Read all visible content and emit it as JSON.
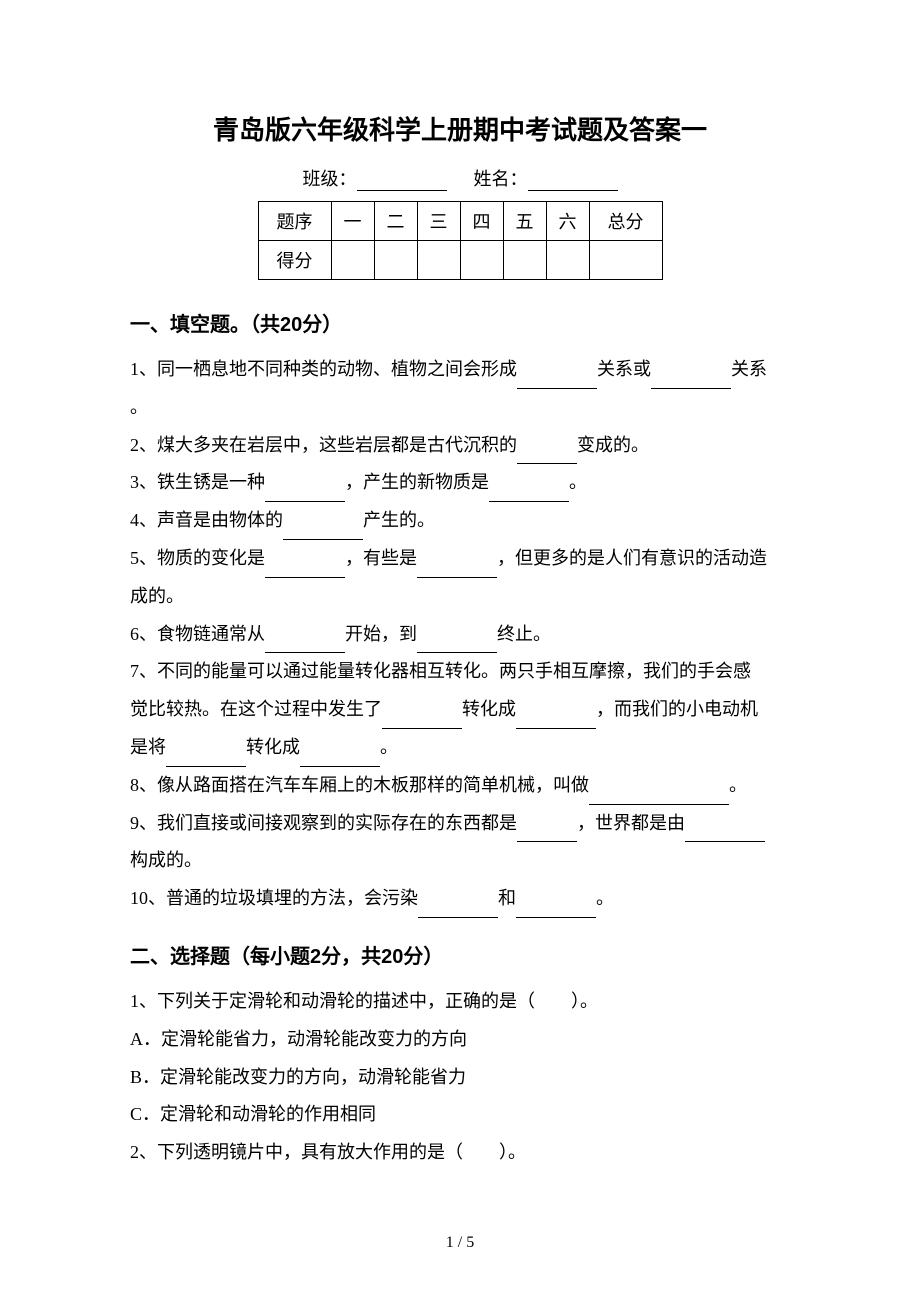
{
  "title": "青岛版六年级科学上册期中考试题及答案一",
  "info": {
    "class_label": "班级：",
    "name_label": "姓名："
  },
  "score_table": {
    "headers": [
      "题序",
      "一",
      "二",
      "三",
      "四",
      "五",
      "六",
      "总分"
    ],
    "row_label": "得分"
  },
  "section1": {
    "heading": "一、填空题。（共20分）",
    "q1_a": "1、同一栖息地不同种类的动物、植物之间会形成",
    "q1_b": "关系或",
    "q1_c": "关系",
    "q1_d": "。",
    "q2_a": "2、煤大多夹在岩层中，这些岩层都是古代沉积的",
    "q2_b": "变成的。",
    "q3_a": "3、铁生锈是一种",
    "q3_b": "，产生的新物质是",
    "q3_c": "。",
    "q4_a": "4、声音是由物体的",
    "q4_b": "产生的。",
    "q5_a": "5、物质的变化是",
    "q5_b": "，有些是",
    "q5_c": "，但更多的是人们有意识的活动造",
    "q5_d": "成的。",
    "q6_a": "6、食物链通常从",
    "q6_b": "开始，到",
    "q6_c": "终止。",
    "q7_a": "7、不同的能量可以通过能量转化器相互转化。两只手相互摩擦，我们的手会感",
    "q7_b": "觉比较热。在这个过程中发生了",
    "q7_c": "转化成",
    "q7_d": "，而我们的小电动机",
    "q7_e": "是将",
    "q7_f": "转化成",
    "q7_g": "。",
    "q8_a": "8、像从路面搭在汽车车厢上的木板那样的简单机械，叫做",
    "q8_b": "。",
    "q9_a": "9、我们直接或间接观察到的实际存在的东西都是",
    "q9_b": "，世界都是由",
    "q9_c": "构成的。",
    "q10_a": "10、普通的垃圾填埋的方法，会污染",
    "q10_b": "和",
    "q10_c": "。"
  },
  "section2": {
    "heading": "二、选择题（每小题2分，共20分）",
    "q1": "1、下列关于定滑轮和动滑轮的描述中，正确的是（　　）。",
    "q1_a": "A．定滑轮能省力，动滑轮能改变力的方向",
    "q1_b": "B．定滑轮能改变力的方向，动滑轮能省力",
    "q1_c": "C．定滑轮和动滑轮的作用相同",
    "q2": "2、下列透明镜片中，具有放大作用的是（　　）。"
  },
  "footer": "1 / 5",
  "colors": {
    "text": "#000000",
    "background": "#ffffff",
    "table_border": "#000000"
  },
  "typography": {
    "title_fontsize": 26,
    "heading_fontsize": 20,
    "body_fontsize": 18,
    "footer_fontsize": 16,
    "line_height": 2.1
  }
}
